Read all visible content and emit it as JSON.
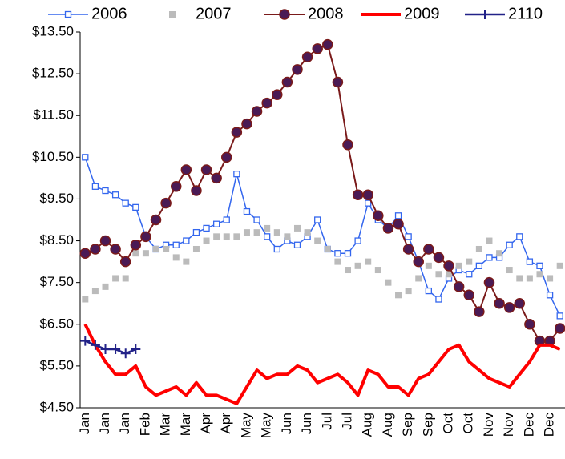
{
  "chart_data": {
    "type": "line",
    "categories": [
      "Jan",
      null,
      "Jan",
      null,
      "Jan",
      null,
      "Feb",
      null,
      "Mar",
      null,
      "Mar",
      null,
      "Apr",
      null,
      "Apr",
      null,
      "May",
      null,
      "May",
      null,
      "Jun",
      null,
      "Jun",
      null,
      "Jul",
      null,
      "Jul",
      null,
      "Aug",
      null,
      "Aug",
      null,
      "Sep",
      null,
      "Sep",
      null,
      "Oct",
      null,
      "Oct",
      null,
      "Nov",
      null,
      "Nov",
      null,
      "Dec",
      null,
      "Dec",
      null
    ],
    "ylim": [
      4.5,
      13.5
    ],
    "yticks": [
      {
        "value": 4.5,
        "label": "$4.50"
      },
      {
        "value": 5.5,
        "label": "$5.50"
      },
      {
        "value": 6.5,
        "label": "$6.50"
      },
      {
        "value": 7.5,
        "label": "$7.50"
      },
      {
        "value": 8.5,
        "label": "$8.50"
      },
      {
        "value": 9.5,
        "label": "$9.50"
      },
      {
        "value": 10.5,
        "label": "$10.50"
      },
      {
        "value": 11.5,
        "label": "$11.50"
      },
      {
        "value": 12.5,
        "label": "$12.50"
      },
      {
        "value": 13.5,
        "label": "$13.50"
      }
    ],
    "legend": "top",
    "series": [
      {
        "name": "2006",
        "color": "#3366ee",
        "marker": "square",
        "line_width": 1.5,
        "values": [
          10.5,
          9.8,
          9.7,
          9.6,
          9.4,
          9.3,
          8.6,
          8.3,
          8.4,
          8.4,
          8.5,
          8.7,
          8.8,
          8.9,
          9.0,
          10.1,
          9.2,
          9.0,
          8.6,
          8.3,
          8.5,
          8.4,
          8.6,
          9.0,
          8.3,
          8.2,
          8.2,
          8.5,
          9.4,
          9.0,
          8.8,
          9.1,
          8.6,
          8.0,
          7.3,
          7.1,
          7.6,
          7.8,
          7.7,
          7.9,
          8.1,
          8.1,
          8.4,
          8.6,
          8.0,
          7.9,
          7.2,
          6.7
        ]
      },
      {
        "name": "2007",
        "color": "#bbbbbb",
        "marker": "square-filled",
        "line_width": 0,
        "values": [
          7.1,
          7.3,
          7.4,
          7.6,
          7.6,
          8.2,
          8.2,
          8.3,
          8.3,
          8.1,
          8.0,
          8.3,
          8.5,
          8.6,
          8.6,
          8.6,
          8.7,
          8.7,
          8.8,
          8.7,
          8.6,
          8.8,
          8.7,
          8.5,
          8.3,
          8.0,
          7.8,
          7.9,
          8.0,
          7.8,
          7.5,
          7.2,
          7.3,
          7.6,
          7.9,
          7.7,
          7.7,
          7.9,
          8.0,
          8.3,
          8.5,
          8.2,
          7.8,
          7.6,
          7.6,
          7.7,
          7.6,
          7.9
        ]
      },
      {
        "name": "2008",
        "color": "#7a1a1a",
        "marker": "circle",
        "line_width": 2,
        "values": [
          8.2,
          8.3,
          8.5,
          8.3,
          8.0,
          8.4,
          8.6,
          9.0,
          9.4,
          9.8,
          10.2,
          9.7,
          10.2,
          10.0,
          10.5,
          11.1,
          11.3,
          11.6,
          11.8,
          12.0,
          12.3,
          12.6,
          12.9,
          13.1,
          13.2,
          12.3,
          10.8,
          9.6,
          9.6,
          9.1,
          8.8,
          8.9,
          8.3,
          8.0,
          8.3,
          8.1,
          7.9,
          7.4,
          7.2,
          6.8,
          7.5,
          7.0,
          6.9,
          7.0,
          6.5,
          6.1,
          6.1,
          6.4
        ]
      },
      {
        "name": "2009",
        "color": "#ff0000",
        "marker": "none",
        "line_width": 4,
        "values": [
          6.5,
          6.0,
          5.6,
          5.3,
          5.3,
          5.5,
          5.0,
          4.8,
          4.9,
          5.0,
          4.8,
          5.1,
          4.8,
          4.8,
          4.7,
          4.6,
          5.0,
          5.4,
          5.2,
          5.3,
          5.3,
          5.5,
          5.4,
          5.1,
          5.2,
          5.3,
          5.1,
          4.8,
          5.4,
          5.3,
          5.0,
          5.0,
          4.8,
          5.2,
          5.3,
          5.6,
          5.9,
          6.0,
          5.6,
          5.4,
          5.2,
          5.1,
          5.0,
          5.3,
          5.6,
          6.0,
          6.0,
          5.9
        ]
      },
      {
        "name": "2110",
        "color": "#222288",
        "marker": "plus",
        "line_width": 2.5,
        "values": [
          6.1,
          6.0,
          5.9,
          5.9,
          5.8,
          5.9,
          null,
          null,
          null,
          null,
          null,
          null,
          null,
          null,
          null,
          null,
          null,
          null,
          null,
          null,
          null,
          null,
          null,
          null,
          null,
          null,
          null,
          null,
          null,
          null,
          null,
          null,
          null,
          null,
          null,
          null,
          null,
          null,
          null,
          null,
          null,
          null,
          null,
          null,
          null,
          null,
          null,
          null
        ]
      }
    ]
  }
}
